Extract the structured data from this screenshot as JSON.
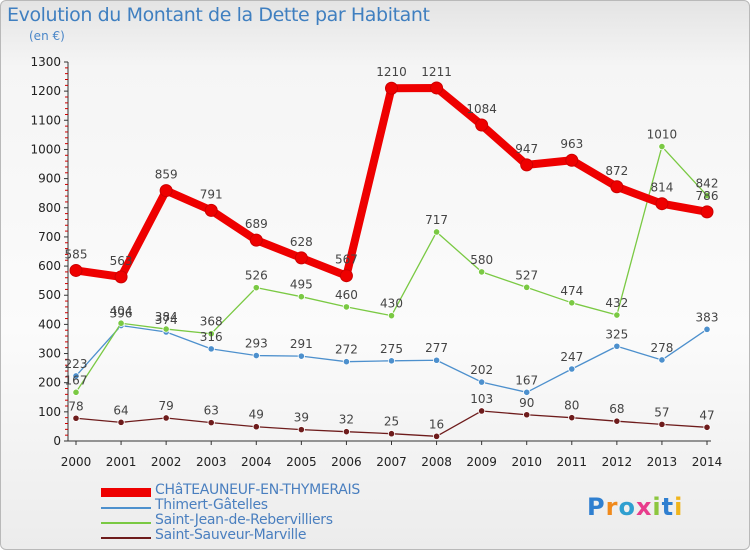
{
  "title": "Evolution du Montant de la Dette par Habitant",
  "unit": "(en €)",
  "logo": "Proxiti",
  "chart_data": {
    "type": "line",
    "title": "Evolution du Montant de la Dette par Habitant",
    "ylabel": "(en €)",
    "xlabel": "",
    "x": [
      "2000",
      "2001",
      "2002",
      "2003",
      "2004",
      "2005",
      "2006",
      "2007",
      "2008",
      "2009",
      "2010",
      "2011",
      "2012",
      "2013",
      "2014"
    ],
    "ylim": [
      0,
      1300
    ],
    "yticks": [
      0,
      100,
      200,
      300,
      400,
      500,
      600,
      700,
      800,
      900,
      1000,
      1100,
      1200,
      1300
    ],
    "grid": false,
    "legend_position": "bottom-left",
    "series": [
      {
        "name": "Thimert-Gâtelles",
        "color": "#4d90cd",
        "values": [
          223,
          396,
          374,
          316,
          293,
          291,
          272,
          275,
          277,
          202,
          167,
          247,
          325,
          278,
          383
        ]
      },
      {
        "name": "Saint-Jean-de-Rebervilliers",
        "color": "#7ac943",
        "values": [
          167,
          404,
          384,
          368,
          526,
          495,
          460,
          430,
          717,
          580,
          527,
          474,
          432,
          1010,
          842
        ]
      },
      {
        "name": "Saint-Sauveur-Marville",
        "color": "#6e1c1c",
        "values": [
          78,
          64,
          79,
          63,
          49,
          39,
          32,
          25,
          16,
          103,
          90,
          80,
          68,
          57,
          47
        ]
      },
      {
        "name": "CHâTEAUNEUF-EN-THYMERAIS",
        "color": "#ee0000",
        "values": [
          585,
          563,
          859,
          791,
          689,
          628,
          567,
          1210,
          1211,
          1084,
          947,
          963,
          872,
          814,
          786
        ]
      }
    ]
  },
  "legend": [
    {
      "label": "CHâTEAUNEUF-EN-THYMERAIS",
      "color": "#ee0000",
      "width": 9
    },
    {
      "label": "Thimert-Gâtelles",
      "color": "#4d90cd",
      "width": 2
    },
    {
      "label": "Saint-Jean-de-Rebervilliers",
      "color": "#7ac943",
      "width": 2
    },
    {
      "label": "Saint-Sauveur-Marville",
      "color": "#6e1c1c",
      "width": 2
    }
  ]
}
